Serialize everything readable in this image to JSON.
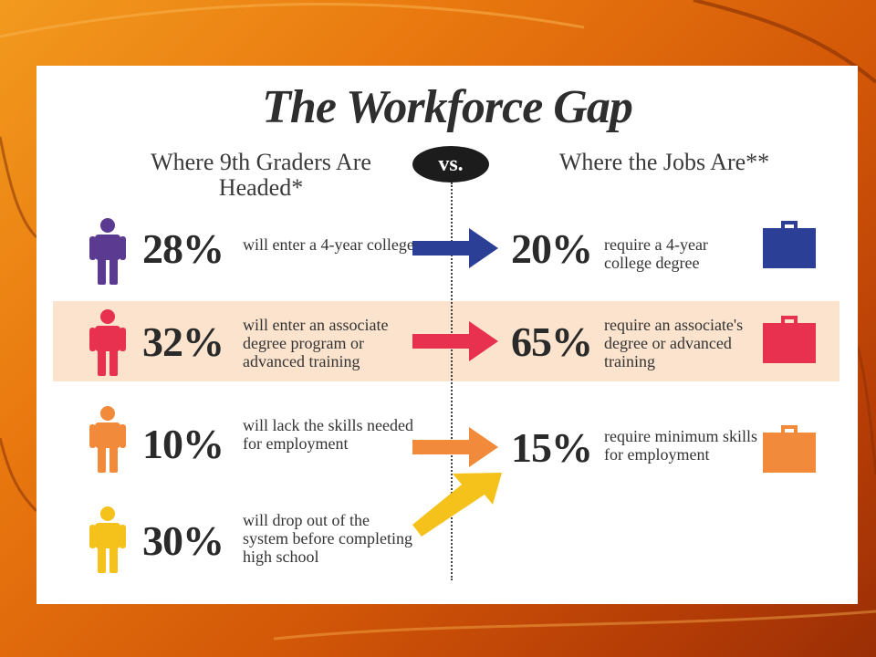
{
  "title": "The Workforce Gap",
  "left_heading": "Where 9th Graders Are Headed*",
  "right_heading": "Where the Jobs Are**",
  "vs_label": "vs.",
  "colors": {
    "purple": "#5b3a92",
    "red": "#e8304f",
    "orange": "#f28a3c",
    "yellow": "#f5c21b",
    "blue": "#2b3f97"
  },
  "rows": [
    {
      "left_pct": "28%",
      "left_desc": "will enter a 4-year college",
      "right_pct": "20%",
      "right_desc": "require a 4-year college degree",
      "person_color": "purple",
      "case_color": "blue",
      "arrow_color": "blue"
    },
    {
      "left_pct": "32%",
      "left_desc": "will enter an associate degree program or advanced training",
      "right_pct": "65%",
      "right_desc": "require an associate's degree or advanced training",
      "person_color": "red",
      "case_color": "red",
      "arrow_color": "red"
    },
    {
      "left_pct": "10%",
      "left_desc": "will lack the skills needed for employment",
      "right_pct": "15%",
      "right_desc": "require minimum skills for employment",
      "person_color": "orange",
      "case_color": "orange",
      "arrow_color": "orange"
    },
    {
      "left_pct": "30%",
      "left_desc": "will drop out of the system before completing high school",
      "person_color": "yellow",
      "arrow_color": "yellow"
    }
  ],
  "chart_data": {
    "type": "table",
    "title": "The Workforce Gap",
    "columns": [
      "Where 9th Graders Are Headed*",
      "Where the Jobs Are**"
    ],
    "left": [
      {
        "label": "will enter a 4-year college",
        "value": 28
      },
      {
        "label": "will enter an associate degree program or advanced training",
        "value": 32
      },
      {
        "label": "will lack the skills needed for employment",
        "value": 10
      },
      {
        "label": "will drop out of the system before completing high school",
        "value": 30
      }
    ],
    "right": [
      {
        "label": "require a 4-year college degree",
        "value": 20
      },
      {
        "label": "require an associate's degree or advanced training",
        "value": 65
      },
      {
        "label": "require minimum skills for employment",
        "value": 15
      }
    ],
    "unit": "%"
  }
}
